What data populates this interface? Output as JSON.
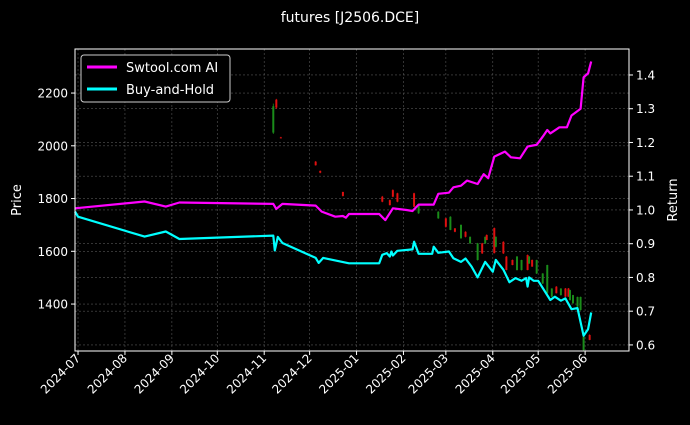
{
  "chart_data": {
    "type": "line",
    "title": "futures [J2506.DCE]",
    "xlabel": "",
    "ylabel_left": "Price",
    "ylabel_right": "Return",
    "xlim": [
      "2024-06-29",
      "2025-06-30"
    ],
    "ylim_left": [
      1222,
      2367
    ],
    "ylim_right": [
      0.582,
      1.477
    ],
    "grid": true,
    "legend_position": "top-left",
    "background": "#000000",
    "x_ticks": [
      "2024-07",
      "2024-08",
      "2024-09",
      "2024-10",
      "2024-11",
      "2024-12",
      "2025-01",
      "2025-02",
      "2025-03",
      "2025-04",
      "2025-05",
      "2025-06"
    ],
    "y_ticks_left": [
      1400,
      1600,
      1800,
      2000,
      2200
    ],
    "y_ticks_right": [
      0.6,
      0.7,
      0.8,
      0.9,
      1.0,
      1.1,
      1.2,
      1.3,
      1.4
    ],
    "candle_colors": {
      "up": "#1a8c1a",
      "down": "#e01010"
    },
    "candles_ohlc": [
      [
        "2024-11-07",
        2050,
        2160,
        2045,
        2150
      ],
      [
        "2024-11-09",
        2175,
        2178,
        2140,
        2145
      ],
      [
        "2024-11-12",
        2032,
        2034,
        2028,
        2030
      ],
      [
        "2024-12-05",
        1940,
        1942,
        1925,
        1926
      ],
      [
        "2024-12-08",
        1905,
        1906,
        1896,
        1898
      ],
      [
        "2024-12-23",
        1825,
        1826,
        1808,
        1810
      ],
      [
        "2025-01-18",
        1807,
        1810,
        1786,
        1788
      ],
      [
        "2025-01-23",
        1794,
        1796,
        1774,
        1775
      ],
      [
        "2025-01-25",
        1832,
        1835,
        1805,
        1807
      ],
      [
        "2025-01-28",
        1820,
        1822,
        1786,
        1788
      ],
      [
        "2025-02-08",
        1820,
        1822,
        1768,
        1769
      ],
      [
        "2025-02-11",
        1744,
        1776,
        1742,
        1775
      ],
      [
        "2025-02-24",
        1725,
        1752,
        1723,
        1750
      ],
      [
        "2025-03-01",
        1725,
        1727,
        1690,
        1693
      ],
      [
        "2025-03-04",
        1681,
        1733,
        1680,
        1731
      ],
      [
        "2025-03-07",
        1687,
        1688,
        1672,
        1674
      ],
      [
        "2025-03-11",
        1649,
        1702,
        1648,
        1700
      ],
      [
        "2025-03-14",
        1674,
        1676,
        1653,
        1655
      ],
      [
        "2025-03-17",
        1630,
        1656,
        1628,
        1655
      ],
      [
        "2025-03-22",
        1567,
        1632,
        1565,
        1630
      ],
      [
        "2025-03-25",
        1630,
        1632,
        1590,
        1592
      ],
      [
        "2025-03-27",
        1630,
        1656,
        1628,
        1655
      ],
      [
        "2025-03-28",
        1662,
        1664,
        1642,
        1643
      ],
      [
        "2025-04-02",
        1688,
        1690,
        1592,
        1593
      ],
      [
        "2025-04-03",
        1617,
        1656,
        1615,
        1655
      ],
      [
        "2025-04-08",
        1636,
        1638,
        1590,
        1592
      ],
      [
        "2025-04-10",
        1580,
        1582,
        1528,
        1529
      ],
      [
        "2025-04-14",
        1567,
        1569,
        1547,
        1548
      ],
      [
        "2025-04-17",
        1529,
        1582,
        1527,
        1580
      ],
      [
        "2025-04-20",
        1529,
        1568,
        1527,
        1567
      ],
      [
        "2025-04-24",
        1586,
        1588,
        1528,
        1529
      ],
      [
        "2025-04-25",
        1554,
        1582,
        1552,
        1580
      ],
      [
        "2025-04-27",
        1567,
        1569,
        1541,
        1542
      ],
      [
        "2025-04-30",
        1516,
        1568,
        1514,
        1567
      ],
      [
        "2025-05-04",
        1478,
        1517,
        1476,
        1516
      ],
      [
        "2025-05-07",
        1441,
        1549,
        1439,
        1548
      ],
      [
        "2025-05-10",
        1428,
        1460,
        1426,
        1459
      ],
      [
        "2025-05-13",
        1466,
        1468,
        1440,
        1441
      ],
      [
        "2025-05-16",
        1434,
        1460,
        1432,
        1459
      ],
      [
        "2025-05-19",
        1459,
        1461,
        1427,
        1428
      ],
      [
        "2025-05-21",
        1459,
        1461,
        1427,
        1428
      ],
      [
        "2025-05-22",
        1415,
        1454,
        1413,
        1453
      ],
      [
        "2025-05-24",
        1403,
        1435,
        1401,
        1434
      ],
      [
        "2025-05-27",
        1390,
        1428,
        1388,
        1427
      ],
      [
        "2025-05-29",
        1377,
        1428,
        1375,
        1427
      ],
      [
        "2025-05-31",
        1226,
        1277,
        1224,
        1276
      ],
      [
        "2025-06-04",
        1283,
        1285,
        1263,
        1264
      ]
    ],
    "series": [
      {
        "name": "Swtool.com AI",
        "axis": "right",
        "color": "#ff00ff",
        "x": [
          "2024-06-29",
          "2024-08-14",
          "2024-08-28",
          "2024-09-06",
          "2024-11-07",
          "2024-11-09",
          "2024-11-13",
          "2024-12-05",
          "2024-12-09",
          "2024-12-18",
          "2024-12-23",
          "2024-12-25",
          "2024-12-27",
          "2025-01-16",
          "2025-01-20",
          "2025-01-25",
          "2025-02-03",
          "2025-02-07",
          "2025-02-11",
          "2025-02-21",
          "2025-02-24",
          "2025-03-03",
          "2025-03-06",
          "2025-03-11",
          "2025-03-15",
          "2025-03-22",
          "2025-03-26",
          "2025-03-29",
          "2025-04-02",
          "2025-04-09",
          "2025-04-13",
          "2025-04-19",
          "2025-04-24",
          "2025-04-30",
          "2025-05-04",
          "2025-05-07",
          "2025-05-09",
          "2025-05-15",
          "2025-05-20",
          "2025-05-23",
          "2025-05-29",
          "2025-05-31",
          "2025-06-03",
          "2025-06-05"
        ],
        "values": [
          1.005,
          1.025,
          1.01,
          1.022,
          1.018,
          1.003,
          1.018,
          1.013,
          0.995,
          0.98,
          0.982,
          0.977,
          0.988,
          0.988,
          0.97,
          1.005,
          1.0,
          0.997,
          1.016,
          1.016,
          1.048,
          1.051,
          1.067,
          1.072,
          1.087,
          1.077,
          1.106,
          1.094,
          1.158,
          1.173,
          1.156,
          1.153,
          1.188,
          1.193,
          1.217,
          1.237,
          1.227,
          1.245,
          1.245,
          1.28,
          1.3,
          1.393,
          1.405,
          1.44
        ]
      },
      {
        "name": "Buy-and-Hold",
        "axis": "right",
        "color": "#00ffff",
        "x": [
          "2024-06-29",
          "2024-07-01",
          "2024-08-14",
          "2024-08-28",
          "2024-09-06",
          "2024-11-07",
          "2024-11-08",
          "2024-11-10",
          "2024-11-13",
          "2024-12-05",
          "2024-12-07",
          "2024-12-10",
          "2024-12-27",
          "2025-01-16",
          "2025-01-18",
          "2025-01-21",
          "2025-01-23",
          "2025-01-24",
          "2025-01-25",
          "2025-01-28",
          "2025-02-07",
          "2025-02-08",
          "2025-02-11",
          "2025-02-20",
          "2025-02-21",
          "2025-02-24",
          "2025-03-03",
          "2025-03-06",
          "2025-03-11",
          "2025-03-14",
          "2025-03-18",
          "2025-03-22",
          "2025-03-27",
          "2025-04-01",
          "2025-04-03",
          "2025-04-08",
          "2025-04-12",
          "2025-04-16",
          "2025-04-20",
          "2025-04-23",
          "2025-04-24",
          "2025-04-25",
          "2025-04-28",
          "2025-05-01",
          "2025-05-09",
          "2025-05-12",
          "2025-05-16",
          "2025-05-19",
          "2025-05-23",
          "2025-05-27",
          "2025-05-31",
          "2025-06-03",
          "2025-06-05"
        ],
        "values": [
          0.995,
          0.98,
          0.921,
          0.936,
          0.914,
          0.924,
          0.88,
          0.92,
          0.902,
          0.858,
          0.843,
          0.858,
          0.842,
          0.842,
          0.867,
          0.872,
          0.862,
          0.877,
          0.865,
          0.879,
          0.883,
          0.906,
          0.87,
          0.87,
          0.891,
          0.873,
          0.877,
          0.857,
          0.846,
          0.856,
          0.832,
          0.8,
          0.846,
          0.817,
          0.852,
          0.823,
          0.786,
          0.798,
          0.79,
          0.798,
          0.773,
          0.8,
          0.79,
          0.79,
          0.733,
          0.743,
          0.731,
          0.738,
          0.706,
          0.709,
          0.627,
          0.647,
          0.696
        ]
      }
    ]
  }
}
